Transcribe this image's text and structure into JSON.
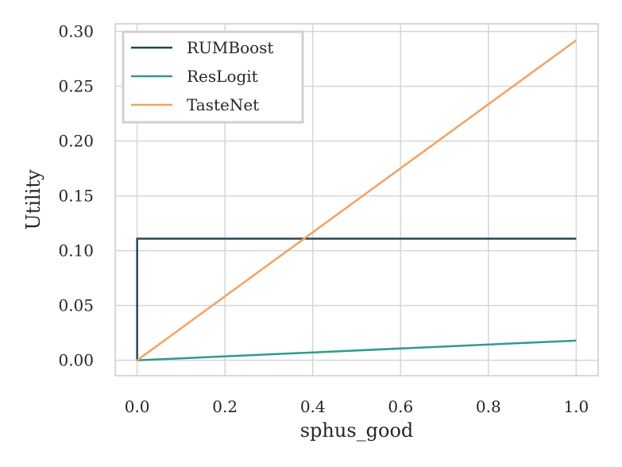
{
  "chart_data": {
    "type": "line",
    "title": "",
    "xlabel": "sphus_good",
    "ylabel": "Utility",
    "xlim": [
      -0.05,
      1.05
    ],
    "ylim": [
      -0.014,
      0.307
    ],
    "x_ticks": [
      0.0,
      0.2,
      0.4,
      0.6,
      0.8,
      1.0
    ],
    "x_tick_labels": [
      "0.0",
      "0.2",
      "0.4",
      "0.6",
      "0.8",
      "1.0"
    ],
    "y_ticks": [
      0.0,
      0.05,
      0.1,
      0.15,
      0.2,
      0.25,
      0.3
    ],
    "y_tick_labels": [
      "0.00",
      "0.05",
      "0.10",
      "0.15",
      "0.20",
      "0.25",
      "0.30"
    ],
    "grid": true,
    "legend_position": "top-left",
    "series": [
      {
        "name": "RUMBoost",
        "color": "#264653",
        "x": [
          0.0,
          0.0,
          1.0
        ],
        "y": [
          0.0,
          0.111,
          0.111
        ]
      },
      {
        "name": "ResLogit",
        "color": "#2a9d8f",
        "x": [
          0.0,
          1.0
        ],
        "y": [
          0.0,
          0.018
        ]
      },
      {
        "name": "TasteNet",
        "color": "#f4a261",
        "x": [
          0.0,
          1.0
        ],
        "y": [
          0.0,
          0.292
        ]
      }
    ]
  }
}
